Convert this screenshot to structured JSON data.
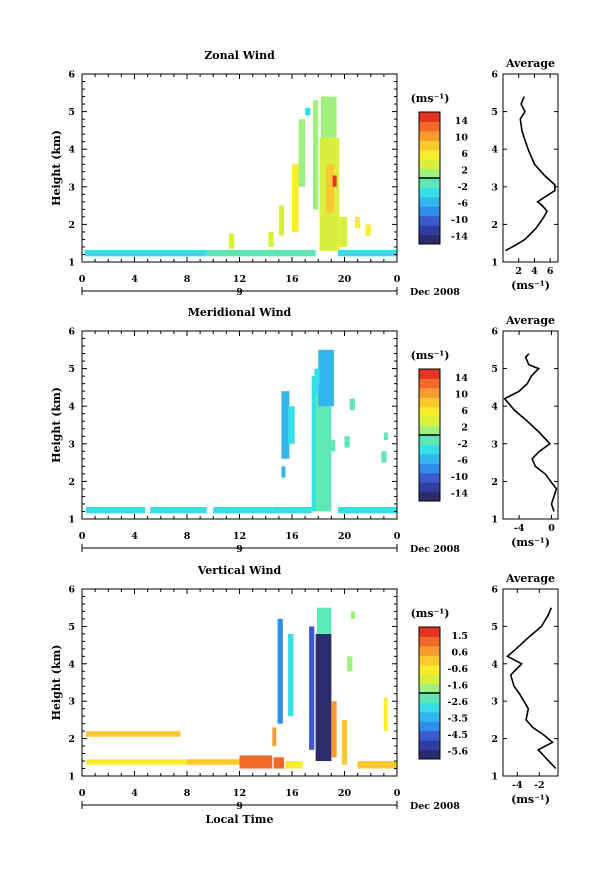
{
  "chart_data": [
    {
      "type": "heatmap",
      "title": "Zonal Wind",
      "ylabel": "Height (km)",
      "xlim": [
        0,
        24
      ],
      "ylim": [
        1,
        6
      ],
      "x_ticks": [
        "0",
        "4",
        "8",
        "12",
        "16",
        "20",
        "0"
      ],
      "y_ticks": [
        "1",
        "2",
        "3",
        "4",
        "5",
        "6"
      ],
      "day_label": "9",
      "date_label": "Dec 2008",
      "colorbar": {
        "unit": "(ms⁻¹)",
        "range": [
          -16,
          16
        ],
        "ticks": [
          "14",
          "10",
          "6",
          "2",
          "-2",
          "-6",
          "-10",
          "-14"
        ]
      },
      "cells": [
        {
          "x0": 0.2,
          "x1": 4.8,
          "y0": 1.15,
          "y1": 1.32,
          "v": -3
        },
        {
          "x0": 4.8,
          "x1": 9.5,
          "y0": 1.15,
          "y1": 1.32,
          "v": -3
        },
        {
          "x0": 9.5,
          "x1": 14.5,
          "y0": 1.15,
          "y1": 1.32,
          "v": -2
        },
        {
          "x0": 14.5,
          "x1": 17.8,
          "y0": 1.15,
          "y1": 1.32,
          "v": -1
        },
        {
          "x0": 19.5,
          "x1": 24.0,
          "y0": 1.15,
          "y1": 1.32,
          "v": -3
        },
        {
          "x0": 11.2,
          "x1": 11.6,
          "y0": 1.35,
          "y1": 1.75,
          "v": 3
        },
        {
          "x0": 14.2,
          "x1": 14.6,
          "y0": 1.4,
          "y1": 1.8,
          "v": 4
        },
        {
          "x0": 15.0,
          "x1": 15.4,
          "y0": 1.7,
          "y1": 2.5,
          "v": 3
        },
        {
          "x0": 16.0,
          "x1": 16.5,
          "y0": 1.8,
          "y1": 3.6,
          "v": 5
        },
        {
          "x0": 16.5,
          "x1": 17.0,
          "y0": 3.0,
          "y1": 4.8,
          "v": 1
        },
        {
          "x0": 17.0,
          "x1": 17.4,
          "y0": 4.9,
          "y1": 5.1,
          "v": -4
        },
        {
          "x0": 17.6,
          "x1": 18.0,
          "y0": 2.4,
          "y1": 5.3,
          "v": 2
        },
        {
          "x0": 18.1,
          "x1": 19.6,
          "y0": 1.3,
          "y1": 4.3,
          "v": 4
        },
        {
          "x0": 18.2,
          "x1": 19.4,
          "y0": 4.3,
          "y1": 5.4,
          "v": 1
        },
        {
          "x0": 18.6,
          "x1": 19.2,
          "y0": 2.3,
          "y1": 3.6,
          "v": 8
        },
        {
          "x0": 19.1,
          "x1": 19.4,
          "y0": 3.0,
          "y1": 3.3,
          "v": 14
        },
        {
          "x0": 19.6,
          "x1": 20.2,
          "y0": 1.4,
          "y1": 2.2,
          "v": 3
        },
        {
          "x0": 20.8,
          "x1": 21.2,
          "y0": 1.9,
          "y1": 2.2,
          "v": 5
        },
        {
          "x0": 21.6,
          "x1": 22.0,
          "y0": 1.7,
          "y1": 2.0,
          "v": 6
        }
      ],
      "profile": {
        "title": "Average",
        "xlabel": "(ms⁻¹)",
        "x_ticks": [
          "2",
          "4",
          "6"
        ],
        "xlim": [
          0,
          7
        ],
        "ylim": [
          1,
          6
        ],
        "points": [
          [
            0.3,
            1.3
          ],
          [
            1.6,
            1.45
          ],
          [
            2.8,
            1.6
          ],
          [
            4.2,
            1.9
          ],
          [
            5.2,
            2.2
          ],
          [
            5.6,
            2.35
          ],
          [
            5.0,
            2.5
          ],
          [
            4.4,
            2.6
          ],
          [
            5.5,
            2.75
          ],
          [
            6.6,
            2.9
          ],
          [
            6.6,
            3.05
          ],
          [
            5.3,
            3.3
          ],
          [
            4.0,
            3.6
          ],
          [
            3.2,
            4.0
          ],
          [
            2.7,
            4.3
          ],
          [
            2.4,
            4.5
          ],
          [
            2.2,
            4.8
          ],
          [
            2.8,
            5.0
          ],
          [
            2.3,
            5.2
          ],
          [
            2.7,
            5.4
          ]
        ]
      }
    },
    {
      "type": "heatmap",
      "title": "Meridional Wind",
      "ylabel": "Height (km)",
      "xlim": [
        0,
        24
      ],
      "ylim": [
        1,
        6
      ],
      "x_ticks": [
        "0",
        "4",
        "8",
        "12",
        "16",
        "20",
        "0"
      ],
      "y_ticks": [
        "1",
        "2",
        "3",
        "4",
        "5",
        "6"
      ],
      "day_label": "9",
      "date_label": "Dec 2008",
      "colorbar": {
        "unit": "(ms⁻¹)",
        "range": [
          -16,
          16
        ],
        "ticks": [
          "14",
          "10",
          "6",
          "2",
          "-2",
          "-6",
          "-10",
          "-14"
        ]
      },
      "cells": [
        {
          "x0": 0.3,
          "x1": 4.8,
          "y0": 1.15,
          "y1": 1.32,
          "v": -3
        },
        {
          "x0": 5.2,
          "x1": 9.5,
          "y0": 1.15,
          "y1": 1.32,
          "v": -3
        },
        {
          "x0": 10.0,
          "x1": 14.5,
          "y0": 1.15,
          "y1": 1.32,
          "v": -3
        },
        {
          "x0": 14.5,
          "x1": 17.5,
          "y0": 1.15,
          "y1": 1.32,
          "v": -4
        },
        {
          "x0": 19.5,
          "x1": 24.0,
          "y0": 1.15,
          "y1": 1.32,
          "v": -3
        },
        {
          "x0": 15.2,
          "x1": 15.8,
          "y0": 2.6,
          "y1": 4.4,
          "v": -6
        },
        {
          "x0": 15.7,
          "x1": 16.2,
          "y0": 3.0,
          "y1": 4.0,
          "v": -3
        },
        {
          "x0": 15.2,
          "x1": 15.5,
          "y0": 2.1,
          "y1": 2.4,
          "v": -6
        },
        {
          "x0": 17.5,
          "x1": 18.0,
          "y0": 1.2,
          "y1": 4.8,
          "v": -3
        },
        {
          "x0": 17.8,
          "x1": 19.0,
          "y0": 1.2,
          "y1": 4.3,
          "v": -1
        },
        {
          "x0": 18.0,
          "x1": 19.2,
          "y0": 4.0,
          "y1": 5.5,
          "v": -6
        },
        {
          "x0": 17.7,
          "x1": 18.1,
          "y0": 4.6,
          "y1": 5.0,
          "v": -3
        },
        {
          "x0": 19.0,
          "x1": 19.3,
          "y0": 2.8,
          "y1": 3.1,
          "v": -2
        },
        {
          "x0": 20.0,
          "x1": 20.4,
          "y0": 2.9,
          "y1": 3.2,
          "v": -1
        },
        {
          "x0": 20.4,
          "x1": 20.8,
          "y0": 3.9,
          "y1": 4.2,
          "v": -2
        },
        {
          "x0": 22.8,
          "x1": 23.2,
          "y0": 2.5,
          "y1": 2.8,
          "v": -2
        },
        {
          "x0": 23.0,
          "x1": 23.3,
          "y0": 3.1,
          "y1": 3.3,
          "v": -1
        }
      ],
      "profile": {
        "title": "Average",
        "xlabel": "(ms⁻¹)",
        "x_ticks": [
          "-4",
          "0"
        ],
        "xlim": [
          -6,
          0.8
        ],
        "ylim": [
          1,
          6
        ],
        "points": [
          [
            0.3,
            1.2
          ],
          [
            0,
            1.4
          ],
          [
            0.6,
            1.8
          ],
          [
            -0.8,
            2.2
          ],
          [
            -2.0,
            2.4
          ],
          [
            -2.4,
            2.6
          ],
          [
            -1.5,
            2.8
          ],
          [
            -0.2,
            3.0
          ],
          [
            -1.5,
            3.3
          ],
          [
            -3.0,
            3.6
          ],
          [
            -4.6,
            3.9
          ],
          [
            -5.8,
            4.2
          ],
          [
            -4.0,
            4.4
          ],
          [
            -3.0,
            4.6
          ],
          [
            -2.5,
            4.8
          ],
          [
            -1.6,
            5.0
          ],
          [
            -2.8,
            5.1
          ],
          [
            -3.2,
            5.3
          ],
          [
            -2.8,
            5.4
          ]
        ]
      }
    },
    {
      "type": "heatmap",
      "title": "Vertical Wind",
      "ylabel": "Height (km)",
      "xlabel": "Local Time",
      "xlim": [
        0,
        24
      ],
      "ylim": [
        1,
        6
      ],
      "x_ticks": [
        "0",
        "4",
        "8",
        "12",
        "16",
        "20",
        "0"
      ],
      "y_ticks": [
        "1",
        "2",
        "3",
        "4",
        "5",
        "6"
      ],
      "day_label": "9",
      "date_label": "Dec 2008",
      "colorbar": {
        "unit": "(ms⁻¹)",
        "range": [
          -6.1,
          2.1
        ],
        "ticks": [
          "1.5",
          "0.6",
          "-0.6",
          "-1.6",
          "-2.6",
          "-3.5",
          "-4.5",
          "-5.6"
        ]
      },
      "cells": [
        {
          "x0": 0.3,
          "x1": 7.5,
          "y0": 2.05,
          "y1": 2.2,
          "v": 0
        },
        {
          "x0": 0.3,
          "x1": 8.0,
          "y0": 1.3,
          "y1": 1.45,
          "v": -0.4
        },
        {
          "x0": 8.0,
          "x1": 12.0,
          "y0": 1.3,
          "y1": 1.45,
          "v": 0.2
        },
        {
          "x0": 12.0,
          "x1": 14.5,
          "y0": 1.2,
          "y1": 1.55,
          "v": 1.0
        },
        {
          "x0": 14.6,
          "x1": 15.4,
          "y0": 1.2,
          "y1": 1.5,
          "v": 1.4
        },
        {
          "x0": 15.5,
          "x1": 16.8,
          "y0": 1.2,
          "y1": 1.4,
          "v": -0.6
        },
        {
          "x0": 14.9,
          "x1": 15.3,
          "y0": 2.4,
          "y1": 5.2,
          "v": -4.2
        },
        {
          "x0": 15.7,
          "x1": 16.1,
          "y0": 2.6,
          "y1": 4.8,
          "v": -3.0
        },
        {
          "x0": 14.5,
          "x1": 14.8,
          "y0": 1.8,
          "y1": 2.3,
          "v": 0.4
        },
        {
          "x0": 17.3,
          "x1": 17.7,
          "y0": 1.7,
          "y1": 5.0,
          "v": -4.5
        },
        {
          "x0": 17.8,
          "x1": 19.0,
          "y0": 1.4,
          "y1": 4.8,
          "v": -5.8
        },
        {
          "x0": 17.9,
          "x1": 19.0,
          "y0": 4.8,
          "y1": 5.5,
          "v": -2.2
        },
        {
          "x0": 19.0,
          "x1": 19.4,
          "y0": 1.5,
          "y1": 3.0,
          "v": 0.6
        },
        {
          "x0": 19.8,
          "x1": 20.2,
          "y0": 1.3,
          "y1": 2.5,
          "v": 0.3
        },
        {
          "x0": 21.0,
          "x1": 24.0,
          "y0": 1.2,
          "y1": 1.4,
          "v": 0.1
        },
        {
          "x0": 23.0,
          "x1": 23.3,
          "y0": 2.2,
          "y1": 3.1,
          "v": -0.3
        },
        {
          "x0": 20.2,
          "x1": 20.6,
          "y0": 3.8,
          "y1": 4.2,
          "v": -2.0
        },
        {
          "x0": 20.5,
          "x1": 20.8,
          "y0": 5.2,
          "y1": 5.4,
          "v": -1.5
        }
      ],
      "profile": {
        "title": "Average",
        "xlabel": "(ms⁻¹)",
        "x_ticks": [
          "-4",
          "-2"
        ],
        "xlim": [
          -5.3,
          -0.3
        ],
        "ylim": [
          1,
          6
        ],
        "points": [
          [
            -0.5,
            1.2
          ],
          [
            -1.3,
            1.45
          ],
          [
            -2.1,
            1.7
          ],
          [
            -0.8,
            1.9
          ],
          [
            -1.6,
            2.1
          ],
          [
            -2.6,
            2.3
          ],
          [
            -3.2,
            2.5
          ],
          [
            -3.0,
            2.8
          ],
          [
            -3.8,
            3.2
          ],
          [
            -4.3,
            3.4
          ],
          [
            -4.6,
            3.7
          ],
          [
            -3.6,
            4.0
          ],
          [
            -4.9,
            4.2
          ],
          [
            -4.1,
            4.4
          ],
          [
            -3.0,
            4.7
          ],
          [
            -1.8,
            5.0
          ],
          [
            -1.2,
            5.3
          ],
          [
            -0.9,
            5.5
          ]
        ]
      }
    }
  ]
}
